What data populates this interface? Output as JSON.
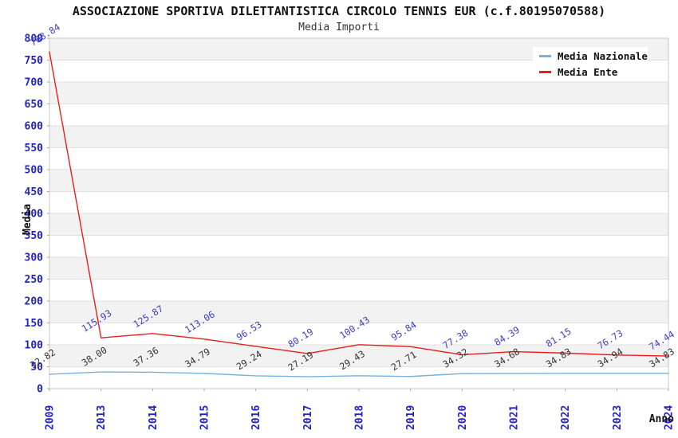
{
  "chart_data": {
    "type": "line",
    "title": "ASSOCIAZIONE SPORTIVA DILETTANTISTICA CIRCOLO TENNIS EUR (c.f.80195070588)",
    "subtitle": "Media Importi",
    "xlabel": "Anno",
    "ylabel": "Media",
    "categories": [
      "2009",
      "2013",
      "2014",
      "2015",
      "2016",
      "2017",
      "2018",
      "2019",
      "2020",
      "2021",
      "2022",
      "2023",
      "2024"
    ],
    "series": [
      {
        "name": "Media Nazionale",
        "color": "#74b0e0",
        "label_color": "#333333",
        "values": [
          32.82,
          38.0,
          37.36,
          34.79,
          29.24,
          27.19,
          29.43,
          27.71,
          34.32,
          34.68,
          34.83,
          34.94,
          34.83
        ]
      },
      {
        "name": "Media Ente",
        "color": "#ea1c1c",
        "label_color": "#3d3dcc",
        "values": [
          768.84,
          115.93,
          125.87,
          113.06,
          96.53,
          80.19,
          100.43,
          95.84,
          77.38,
          84.39,
          81.15,
          76.73,
          74.44
        ]
      }
    ],
    "ylim": [
      0,
      800
    ],
    "ytick_step": 50,
    "grid": "horizontal-bands",
    "legend_position": "top-right",
    "colors": {
      "tick_label": "#2222cc",
      "band": "#f2f2f2",
      "gridline": "#e0e0e0",
      "plot_border": "#c9c9c9",
      "background": "#ffffff",
      "legend_background": "#ffffff"
    }
  }
}
